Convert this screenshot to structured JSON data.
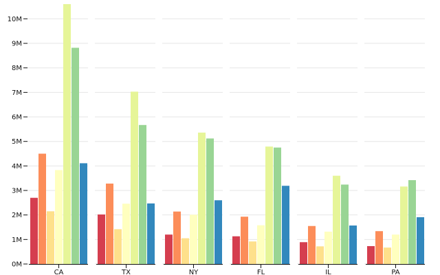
{
  "chart_data": {
    "type": "bar",
    "categories": [
      "CA",
      "TX",
      "NY",
      "FL",
      "IL",
      "PA"
    ],
    "series": [
      {
        "color": "#d53e4f",
        "values": [
          2.7,
          2.02,
          1.2,
          1.13,
          0.89,
          0.73
        ]
      },
      {
        "color": "#fc8d59",
        "values": [
          4.5,
          3.28,
          2.14,
          1.93,
          1.55,
          1.34
        ]
      },
      {
        "color": "#fee08b",
        "values": [
          2.15,
          1.42,
          1.05,
          0.92,
          0.72,
          0.67
        ]
      },
      {
        "color": "#ffffbf",
        "values": [
          3.83,
          2.46,
          2.01,
          1.58,
          1.32,
          1.2
        ]
      },
      {
        "color": "#e6f598",
        "values": [
          10.6,
          7.03,
          5.36,
          4.79,
          3.6,
          3.16
        ]
      },
      {
        "color": "#99d594",
        "values": [
          8.82,
          5.67,
          5.12,
          4.75,
          3.24,
          3.42
        ]
      },
      {
        "color": "#3288bd",
        "values": [
          4.11,
          2.47,
          2.6,
          3.19,
          1.57,
          1.91
        ]
      }
    ],
    "yticks": [
      "0M",
      "1M",
      "2M",
      "3M",
      "4M",
      "5M",
      "6M",
      "7M",
      "8M",
      "9M",
      "10M"
    ],
    "ylim": [
      0,
      10.6
    ],
    "grid": true
  }
}
